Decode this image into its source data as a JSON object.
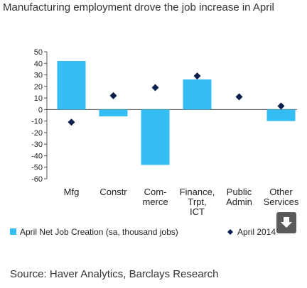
{
  "title": "Manufacturing employment drove the job increase in April",
  "source": "Source: Haver Analytics, Barclays Research",
  "download_icon": "download-arrow-icon",
  "chart_data": {
    "type": "bar",
    "categories": [
      [
        "Mfg"
      ],
      [
        "Constr"
      ],
      [
        "Com-",
        "merce"
      ],
      [
        "Finance,",
        "Trpt,",
        "ICT"
      ],
      [
        "Public",
        "Admin"
      ],
      [
        "Other",
        "Services"
      ]
    ],
    "ylim": [
      -60,
      50
    ],
    "yticks": [
      50,
      40,
      30,
      20,
      10,
      0,
      -10,
      -20,
      -30,
      -40,
      -50,
      -60
    ],
    "series": [
      {
        "name": "April Net Job Creation (sa, thousand jobs)",
        "type": "bar",
        "color": "#33bdf2",
        "values": [
          42,
          -6,
          -48,
          26,
          0,
          -10
        ]
      },
      {
        "name": "April 2014",
        "type": "scatter",
        "marker": "diamond",
        "color": "#0b1f4d",
        "values": [
          -11,
          12,
          19,
          29,
          11,
          3
        ]
      }
    ],
    "legend_position": "bottom",
    "grid": false
  }
}
